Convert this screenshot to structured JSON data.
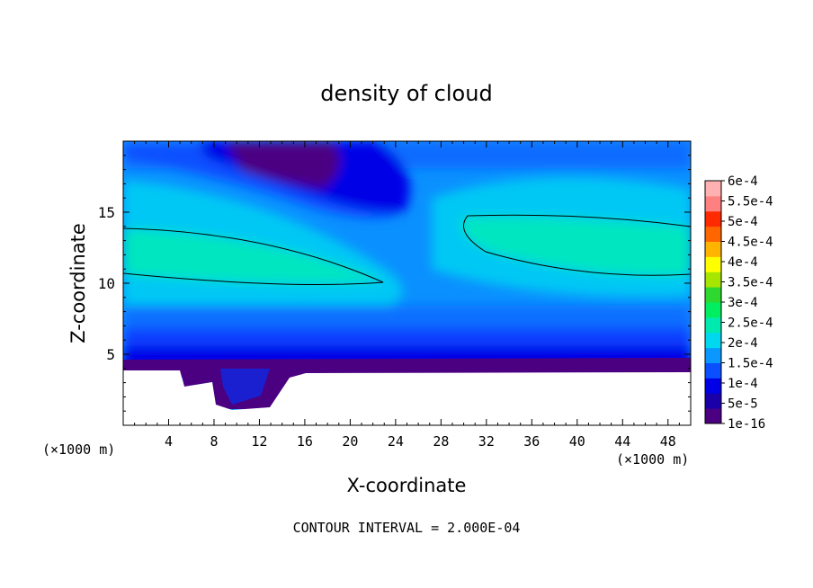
{
  "chart_data": {
    "type": "heatmap",
    "title": "density of cloud",
    "xlabel": "X-coordinate",
    "ylabel": "Z-coordinate",
    "x_unit_left": "(×1000 m)",
    "x_unit_right": "(×1000 m)",
    "footer": "CONTOUR INTERVAL = 2.000E-04",
    "xlim": [
      0,
      50
    ],
    "ylim": [
      0,
      20
    ],
    "x_ticks": [
      4,
      8,
      12,
      16,
      20,
      24,
      28,
      32,
      36,
      40,
      44,
      48
    ],
    "y_ticks": [
      5,
      10,
      15
    ],
    "colorbar": {
      "labels": [
        "6e-4",
        "5.5e-4",
        "5e-4",
        "4.5e-4",
        "4e-4",
        "3.5e-4",
        "3e-4",
        "2.5e-4",
        "2e-4",
        "1.5e-4",
        "1e-4",
        "5e-5",
        "1e-16"
      ],
      "colors": [
        "#4b0082",
        "#1a00a8",
        "#0000e6",
        "#0a50ff",
        "#0a98ff",
        "#00d8f0",
        "#00eab0",
        "#00ee60",
        "#2ed82e",
        "#a6e600",
        "#ffff00",
        "#ffb400",
        "#ff6600",
        "#ff2a00",
        "#ff8080",
        "#ffb0b0"
      ]
    },
    "contour_levels": [
      0.0002
    ],
    "ground_color": "#ffffff"
  }
}
